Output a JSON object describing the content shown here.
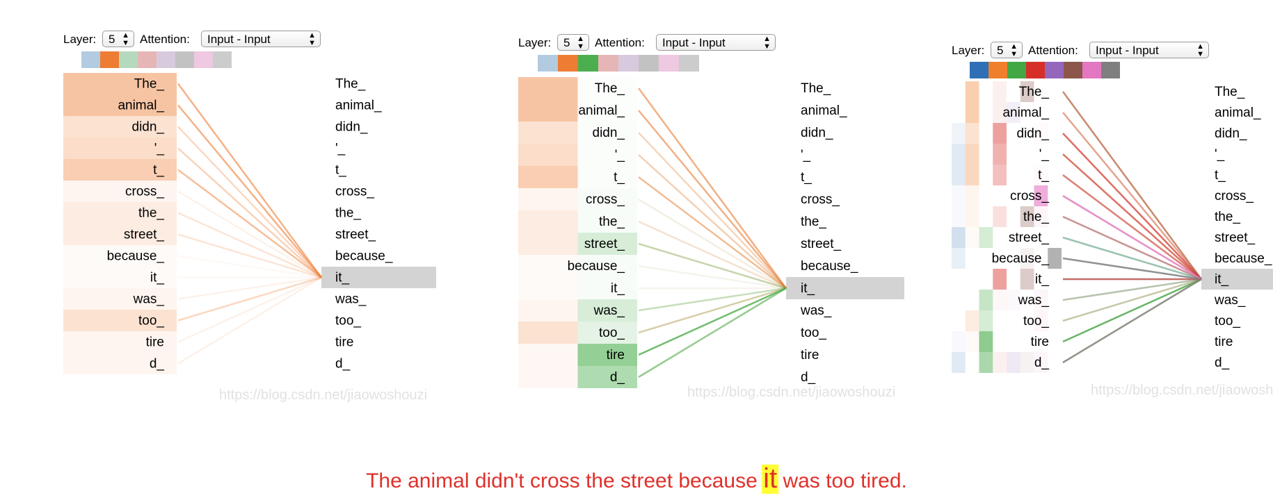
{
  "labels": {
    "layer": "Layer:",
    "attention": "Attention:"
  },
  "tokens": [
    "The_",
    "animal_",
    "didn_",
    "'_",
    "t_",
    "cross_",
    "the_",
    "street_",
    "because_",
    "it_",
    "was_",
    "too_",
    "tire",
    "d_"
  ],
  "selected_index": 9,
  "watermark": "https://blog.csdn.net/jiaowoshouzi",
  "panels": [
    {
      "layer": "5",
      "attention": "Input - Input",
      "heads": [
        {
          "color": "#b3cbe0"
        },
        {
          "color": "#ee7d33",
          "weights": [
            0.6,
            0.6,
            0.3,
            0.35,
            0.5,
            0.1,
            0.2,
            0.2,
            0.05,
            0.05,
            0.1,
            0.3,
            0.1,
            0.1
          ]
        },
        {
          "color": "#b5d9bc"
        },
        {
          "color": "#e6b6b6"
        },
        {
          "color": "#d7cade"
        },
        {
          "color": "#c2c2c2"
        },
        {
          "color": "#efc8e1"
        },
        {
          "color": "#cccccc"
        }
      ]
    },
    {
      "layer": "5",
      "attention": "Input - Input",
      "heads": [
        {
          "color": "#b3cbe0"
        },
        {
          "color": "#ee7d33",
          "weights": [
            0.6,
            0.6,
            0.3,
            0.35,
            0.5,
            0.1,
            0.2,
            0.2,
            0.05,
            0.05,
            0.1,
            0.3,
            0.08,
            0.08
          ]
        },
        {
          "color": "#4caf4f",
          "weights": [
            0.02,
            0.02,
            0.03,
            0.03,
            0.03,
            0.05,
            0.05,
            0.3,
            0.05,
            0.05,
            0.3,
            0.2,
            0.8,
            0.6
          ]
        },
        {
          "color": "#e6b6b6"
        },
        {
          "color": "#d7cade"
        },
        {
          "color": "#c2c2c2"
        },
        {
          "color": "#efc8e1"
        },
        {
          "color": "#cccccc"
        }
      ]
    },
    {
      "layer": "5",
      "attention": "Input - Input",
      "heads": [
        {
          "color": "#2f6fb5",
          "weights": [
            0,
            0,
            0.1,
            0.2,
            0.2,
            0.05,
            0.05,
            0.3,
            0.15,
            0,
            0,
            0,
            0.05,
            0.2
          ]
        },
        {
          "color": "#f07f2c",
          "weights": [
            0.5,
            0.5,
            0.3,
            0.4,
            0.4,
            0.1,
            0.1,
            0.05,
            0,
            0,
            0,
            0.2,
            0.05,
            0
          ]
        },
        {
          "color": "#43a843",
          "weights": [
            0,
            0,
            0,
            0,
            0,
            0,
            0,
            0.3,
            0,
            0,
            0.4,
            0.3,
            0.8,
            0.6
          ]
        },
        {
          "color": "#d62f2a",
          "weights": [
            0.1,
            0.1,
            0.6,
            0.5,
            0.4,
            0,
            0.2,
            0,
            0,
            0.6,
            0.05,
            0,
            0,
            0.1
          ]
        },
        {
          "color": "#9467bd",
          "weights": [
            0,
            0.15,
            0,
            0,
            0,
            0,
            0,
            0,
            0,
            0,
            0.05,
            0,
            0,
            0.2
          ]
        },
        {
          "color": "#8c564b",
          "weights": [
            0.4,
            0,
            0,
            0,
            0,
            0,
            0.4,
            0,
            0.1,
            0.4,
            0,
            0,
            0,
            0.1
          ]
        },
        {
          "color": "#e377c2",
          "weights": [
            0,
            0,
            0.05,
            0,
            0.05,
            0.8,
            0.1,
            0,
            0,
            0,
            0.1,
            0.1,
            0,
            0.1
          ]
        },
        {
          "color": "#7f7f7f",
          "weights": [
            0,
            0,
            0,
            0,
            0,
            0,
            0,
            0,
            0.8,
            0,
            0,
            0,
            0,
            0
          ]
        }
      ]
    }
  ],
  "caption": {
    "before": "The animal didn't cross the street because ",
    "highlight": "it",
    "after": " was too tired."
  }
}
